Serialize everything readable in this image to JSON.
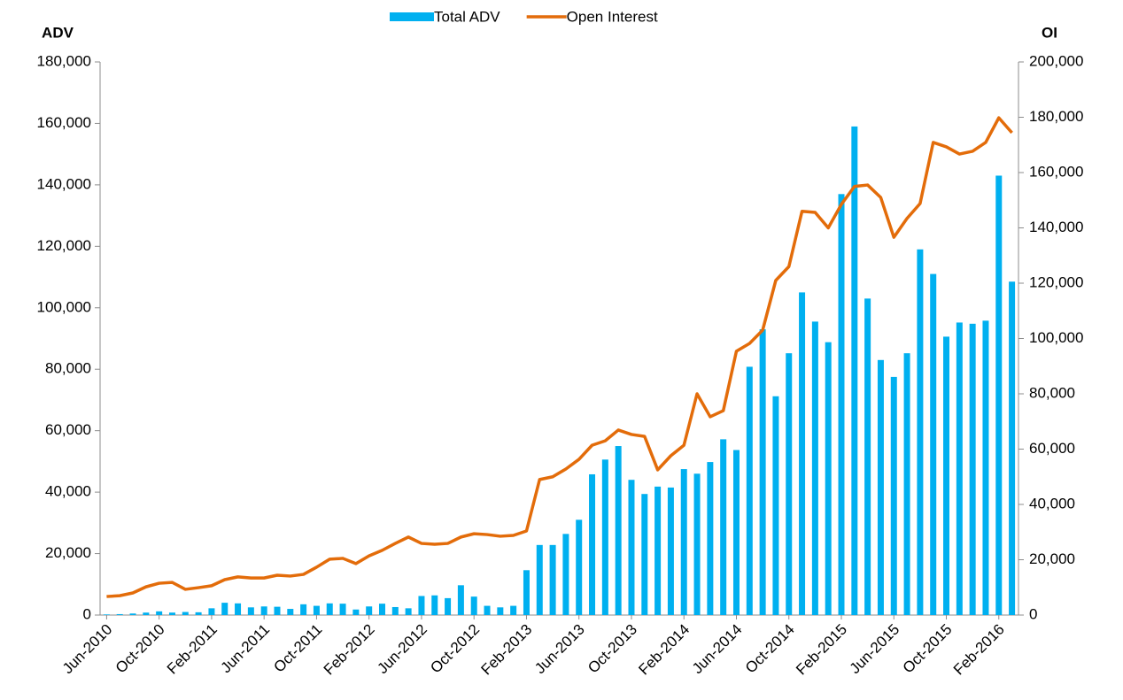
{
  "chart_data": {
    "type": "bar_line",
    "y_label": "ADV",
    "y2_label": "OI",
    "categories": [
      "Jun-2010",
      null,
      null,
      null,
      "Oct-2010",
      null,
      null,
      null,
      "Feb-2011",
      null,
      null,
      null,
      "Jun-2011",
      null,
      null,
      null,
      "Oct-2011",
      null,
      null,
      null,
      "Feb-2012",
      null,
      null,
      null,
      "Jun-2012",
      null,
      null,
      null,
      "Oct-2012",
      null,
      null,
      null,
      "Feb-2013",
      null,
      null,
      null,
      "Jun-2013",
      null,
      null,
      null,
      "Oct-2013",
      null,
      null,
      null,
      "Feb-2014",
      null,
      null,
      null,
      "Jun-2014",
      null,
      null,
      null,
      "Oct-2014",
      null,
      null,
      null,
      "Feb-2015",
      null,
      null,
      null,
      "Jun-2015",
      null,
      null,
      null,
      "Oct-2015",
      null,
      null,
      null,
      "Feb-2016",
      null
    ],
    "series": [
      {
        "name": "Total ADV",
        "type": "bar",
        "color": "#00b0f0",
        "values": [
          200,
          300,
          500,
          800,
          1200,
          800,
          1000,
          900,
          2200,
          4000,
          3800,
          2500,
          2800,
          2700,
          2000,
          3500,
          3000,
          3800,
          3700,
          1800,
          2800,
          3700,
          2600,
          2200,
          6200,
          6400,
          5500,
          9700,
          6000,
          3000,
          2500,
          3000,
          14600,
          22800,
          22800,
          26400,
          31000,
          45800,
          50600,
          55000,
          44000,
          39400,
          41800,
          41500,
          47500,
          46000,
          49800,
          57200,
          53700,
          80800,
          93000,
          71200,
          85200,
          105000,
          95500,
          88800,
          137000,
          159000,
          103000,
          83000,
          77500,
          85200,
          119000,
          111000,
          90600,
          95200,
          94800,
          95800,
          143000,
          108500
        ]
      },
      {
        "name": "Open Interest",
        "type": "line",
        "axis": "y2",
        "color": "#e36c0a",
        "values": [
          6700,
          7000,
          8000,
          10200,
          11500,
          11800,
          9300,
          9900,
          10600,
          12800,
          13800,
          13400,
          13400,
          14400,
          14100,
          14700,
          17300,
          20200,
          20500,
          18600,
          21400,
          23400,
          25900,
          28200,
          25900,
          25600,
          25900,
          28200,
          29400,
          29100,
          28500,
          28800,
          30400,
          49000,
          50000,
          52800,
          56300,
          61400,
          63000,
          66900,
          65300,
          64600,
          52500,
          57600,
          61400,
          80000,
          71700,
          73900,
          95400,
          98200,
          103000,
          121000,
          126000,
          146000,
          145600,
          140000,
          148500,
          155000,
          155500,
          151000,
          136600,
          143400,
          148800,
          170900,
          169300,
          166700,
          167700,
          170900,
          179800,
          174400
        ]
      }
    ],
    "ylim": [
      0,
      180000
    ],
    "yticks": [
      0,
      {
        "value": 20000,
        "label": "20,000"
      },
      {
        "value": 40000,
        "label": "40,000"
      },
      {
        "value": 60000,
        "label": "60,000"
      },
      {
        "value": 80000,
        "label": "80,000"
      },
      {
        "value": 100000,
        "label": "100,000"
      },
      {
        "value": 120000,
        "label": "120,000"
      },
      {
        "value": 140000,
        "label": "140,000"
      },
      {
        "value": 160000,
        "label": "160,000"
      },
      {
        "value": 180000,
        "label": "180,000"
      }
    ],
    "y2lim": [
      0,
      200000
    ],
    "y2ticks": [
      0,
      {
        "value": 20000,
        "label": "20,000"
      },
      {
        "value": 40000,
        "label": "40,000"
      },
      {
        "value": 60000,
        "label": "60,000"
      },
      {
        "value": 80000,
        "label": "80,000"
      },
      {
        "value": 100000,
        "label": "100,000"
      },
      {
        "value": 120000,
        "label": "120,000"
      },
      {
        "value": 140000,
        "label": "140,000"
      },
      {
        "value": 160000,
        "label": "160,000"
      },
      {
        "value": 180000,
        "label": "180,000"
      },
      {
        "value": 200000,
        "label": "200,000"
      }
    ],
    "legend": "top"
  }
}
